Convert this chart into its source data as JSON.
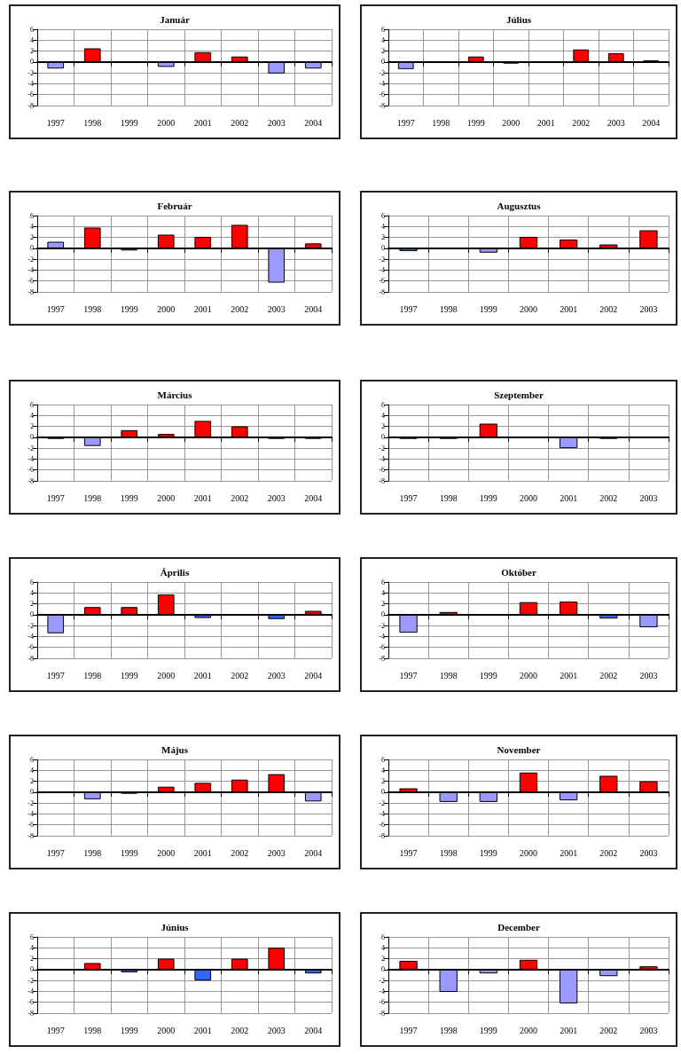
{
  "chart_data": [
    {
      "type": "bar",
      "title": "Január",
      "categories": [
        "1997",
        "1998",
        "1999",
        "2000",
        "2001",
        "2002",
        "2003",
        "2004"
      ],
      "values": [
        -1.2,
        2.5,
        null,
        -0.9,
        1.8,
        1.0,
        -2.1,
        -1.2
      ],
      "colors": [
        "#9999ff",
        "#ff0000",
        "#9999ff",
        "#9999ff",
        "#ff0000",
        "#ff0000",
        "#9999ff",
        "#9999ff"
      ],
      "ylim": [
        -8,
        6
      ],
      "yticks": [
        -8,
        -6,
        -4,
        -2,
        0,
        2,
        4,
        6
      ],
      "grid": true
    },
    {
      "type": "bar",
      "title": "Július",
      "categories": [
        "1997",
        "1998",
        "1999",
        "2000",
        "2001",
        "2002",
        "2003",
        "2004"
      ],
      "values": [
        -1.3,
        null,
        1.0,
        -0.3,
        null,
        2.3,
        1.6,
        0.3
      ],
      "colors": [
        "#9999ff",
        "#9999ff",
        "#ff0000",
        "#3366ff",
        "#9999ff",
        "#ff0000",
        "#ff0000",
        "#333333"
      ],
      "ylim": [
        -8,
        6
      ],
      "yticks": [
        -8,
        -6,
        -4,
        -2,
        0,
        2,
        4,
        6
      ],
      "grid": true
    },
    {
      "type": "bar",
      "title": "Február",
      "categories": [
        "1997",
        "1998",
        "1999",
        "2000",
        "2001",
        "2002",
        "2003",
        "2004"
      ],
      "values": [
        1.2,
        3.8,
        -0.4,
        2.5,
        2.1,
        4.3,
        -6.3,
        0.9
      ],
      "colors": [
        "#9999ff",
        "#ff0000",
        "#3366ff",
        "#ff0000",
        "#ff0000",
        "#ff0000",
        "#9999ff",
        "#ff0000"
      ],
      "ylim": [
        -8,
        6
      ],
      "yticks": [
        -8,
        -6,
        -4,
        -2,
        0,
        2,
        4,
        6
      ],
      "grid": true
    },
    {
      "type": "bar",
      "title": "Augusztus",
      "categories": [
        "1997",
        "1998",
        "1999",
        "2000",
        "2001",
        "2002",
        "2003"
      ],
      "values": [
        -0.5,
        null,
        -0.8,
        2.1,
        1.6,
        0.7,
        3.3
      ],
      "colors": [
        "#3366ff",
        "#9999ff",
        "#9999ff",
        "#ff0000",
        "#ff0000",
        "#ff0000",
        "#ff0000"
      ],
      "ylim": [
        -8,
        6
      ],
      "yticks": [
        -8,
        -6,
        -4,
        -2,
        0,
        2,
        4,
        6
      ],
      "grid": true
    },
    {
      "type": "bar",
      "title": "Március",
      "categories": [
        "1997",
        "1998",
        "1999",
        "2000",
        "2001",
        "2002",
        "2003",
        "2004"
      ],
      "values": [
        -0.3,
        -1.6,
        1.3,
        0.6,
        3.0,
        2.0,
        -0.3,
        -0.3
      ],
      "colors": [
        "#333333",
        "#9999ff",
        "#ff0000",
        "#ff0000",
        "#ff0000",
        "#ff0000",
        "#333333",
        "#333333"
      ],
      "ylim": [
        -8,
        6
      ],
      "yticks": [
        -8,
        -6,
        -4,
        -2,
        0,
        2,
        4,
        6
      ],
      "grid": true
    },
    {
      "type": "bar",
      "title": "Szeptember",
      "categories": [
        "1997",
        "1998",
        "1999",
        "2000",
        "2001",
        "2002",
        "2003"
      ],
      "values": [
        -0.3,
        -0.3,
        2.5,
        null,
        -2.0,
        -0.3,
        null
      ],
      "colors": [
        "#333333",
        "#333333",
        "#ff0000",
        "#9999ff",
        "#9999ff",
        "#333333",
        "#9999ff"
      ],
      "ylim": [
        -8,
        6
      ],
      "yticks": [
        -8,
        -6,
        -4,
        -2,
        0,
        2,
        4,
        6
      ],
      "grid": true
    },
    {
      "type": "bar",
      "title": "Április",
      "categories": [
        "1997",
        "1998",
        "1999",
        "2000",
        "2001",
        "2002",
        "2003",
        "2004"
      ],
      "values": [
        -3.4,
        1.4,
        1.4,
        3.7,
        -0.6,
        null,
        -0.8,
        0.7
      ],
      "colors": [
        "#9999ff",
        "#ff0000",
        "#ff0000",
        "#ff0000",
        "#3366ff",
        "#9999ff",
        "#3366ff",
        "#ff0000"
      ],
      "ylim": [
        -8,
        6
      ],
      "yticks": [
        -8,
        -6,
        -4,
        -2,
        0,
        2,
        4,
        6
      ],
      "grid": true
    },
    {
      "type": "bar",
      "title": "Október",
      "categories": [
        "1997",
        "1998",
        "1999",
        "2000",
        "2001",
        "2002",
        "2003"
      ],
      "values": [
        -3.3,
        0.5,
        null,
        2.3,
        2.4,
        -0.7,
        -2.3
      ],
      "colors": [
        "#9999ff",
        "#ff0000",
        "#9999ff",
        "#ff0000",
        "#ff0000",
        "#3366ff",
        "#9999ff"
      ],
      "ylim": [
        -8,
        6
      ],
      "yticks": [
        -8,
        -6,
        -4,
        -2,
        0,
        2,
        4,
        6
      ],
      "grid": true
    },
    {
      "type": "bar",
      "title": "Május",
      "categories": [
        "1997",
        "1998",
        "1999",
        "2000",
        "2001",
        "2002",
        "2003",
        "2004"
      ],
      "values": [
        null,
        -1.3,
        -0.3,
        1.0,
        1.7,
        2.3,
        3.3,
        -1.7
      ],
      "colors": [
        "#9999ff",
        "#9999ff",
        "#3366ff",
        "#ff0000",
        "#ff0000",
        "#ff0000",
        "#ff0000",
        "#9999ff"
      ],
      "ylim": [
        -8,
        6
      ],
      "yticks": [
        -8,
        -6,
        -4,
        -2,
        0,
        2,
        4,
        6
      ],
      "grid": true
    },
    {
      "type": "bar",
      "title": "November",
      "categories": [
        "1997",
        "1998",
        "1999",
        "2000",
        "2001",
        "2002",
        "2003"
      ],
      "values": [
        0.7,
        -1.8,
        -1.8,
        3.6,
        -1.5,
        3.0,
        2.0
      ],
      "colors": [
        "#ff0000",
        "#9999ff",
        "#9999ff",
        "#ff0000",
        "#9999ff",
        "#ff0000",
        "#ff0000"
      ],
      "ylim": [
        -8,
        6
      ],
      "yticks": [
        -8,
        -6,
        -4,
        -2,
        0,
        2,
        4,
        6
      ],
      "grid": true
    },
    {
      "type": "bar",
      "title": "Június",
      "categories": [
        "1997",
        "1998",
        "1999",
        "2000",
        "2001",
        "2002",
        "2003",
        "2004"
      ],
      "values": [
        null,
        1.2,
        -0.5,
        2.0,
        -2.0,
        2.0,
        4.0,
        -0.7
      ],
      "colors": [
        "#9999ff",
        "#ff0000",
        "#3366ff",
        "#ff0000",
        "#3366ff",
        "#ff0000",
        "#ff0000",
        "#3366ff"
      ],
      "ylim": [
        -8,
        6
      ],
      "yticks": [
        -8,
        -6,
        -4,
        -2,
        0,
        2,
        4,
        6
      ],
      "grid": true
    },
    {
      "type": "bar",
      "title": "December",
      "categories": [
        "1997",
        "1998",
        "1999",
        "2000",
        "2001",
        "2002",
        "2003"
      ],
      "values": [
        1.6,
        -4.1,
        -0.7,
        1.8,
        -6.2,
        -1.2,
        0.6
      ],
      "colors": [
        "#ff0000",
        "#9999ff",
        "#9999ff",
        "#ff0000",
        "#9999ff",
        "#9999ff",
        "#ff0000"
      ],
      "ylim": [
        -8,
        6
      ],
      "yticks": [
        -8,
        -6,
        -4,
        -2,
        0,
        2,
        4,
        6
      ],
      "grid": true
    }
  ]
}
